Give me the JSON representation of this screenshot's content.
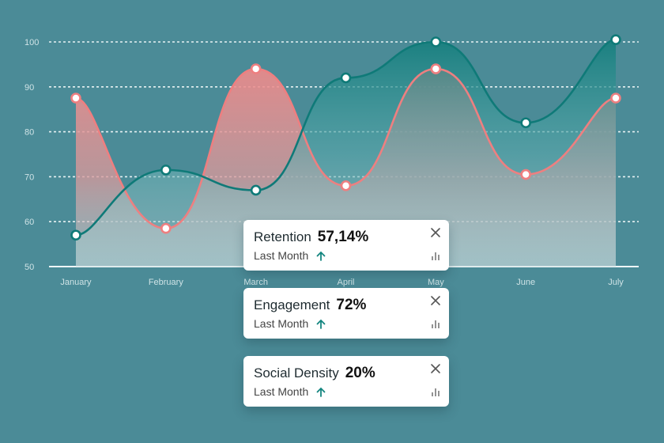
{
  "chart_data": {
    "type": "area",
    "categories": [
      "January",
      "February",
      "March",
      "April",
      "May",
      "June",
      "July"
    ],
    "y_ticks": [
      50,
      60,
      70,
      80,
      90,
      100
    ],
    "ylim": [
      50,
      100
    ],
    "grid": "horizontal dotted",
    "series": [
      {
        "color": "#ee7f80",
        "values": [
          87.5,
          58.5,
          94,
          68,
          94,
          70.5,
          87.5
        ]
      },
      {
        "color": "#0f7a78",
        "values": [
          57,
          71.5,
          67,
          92,
          100,
          82,
          100.5
        ]
      }
    ]
  },
  "cards": [
    {
      "label": "Retention",
      "value": "57,14%",
      "sub": "Last Month"
    },
    {
      "label": "Engagement",
      "value": "72%",
      "sub": "Last Month"
    },
    {
      "label": "Social Density",
      "value": "20%",
      "sub": "Last Month"
    }
  ],
  "icons": {
    "close": "close-icon",
    "trend": "arrow-up-icon",
    "stats": "bar-chart-icon"
  }
}
